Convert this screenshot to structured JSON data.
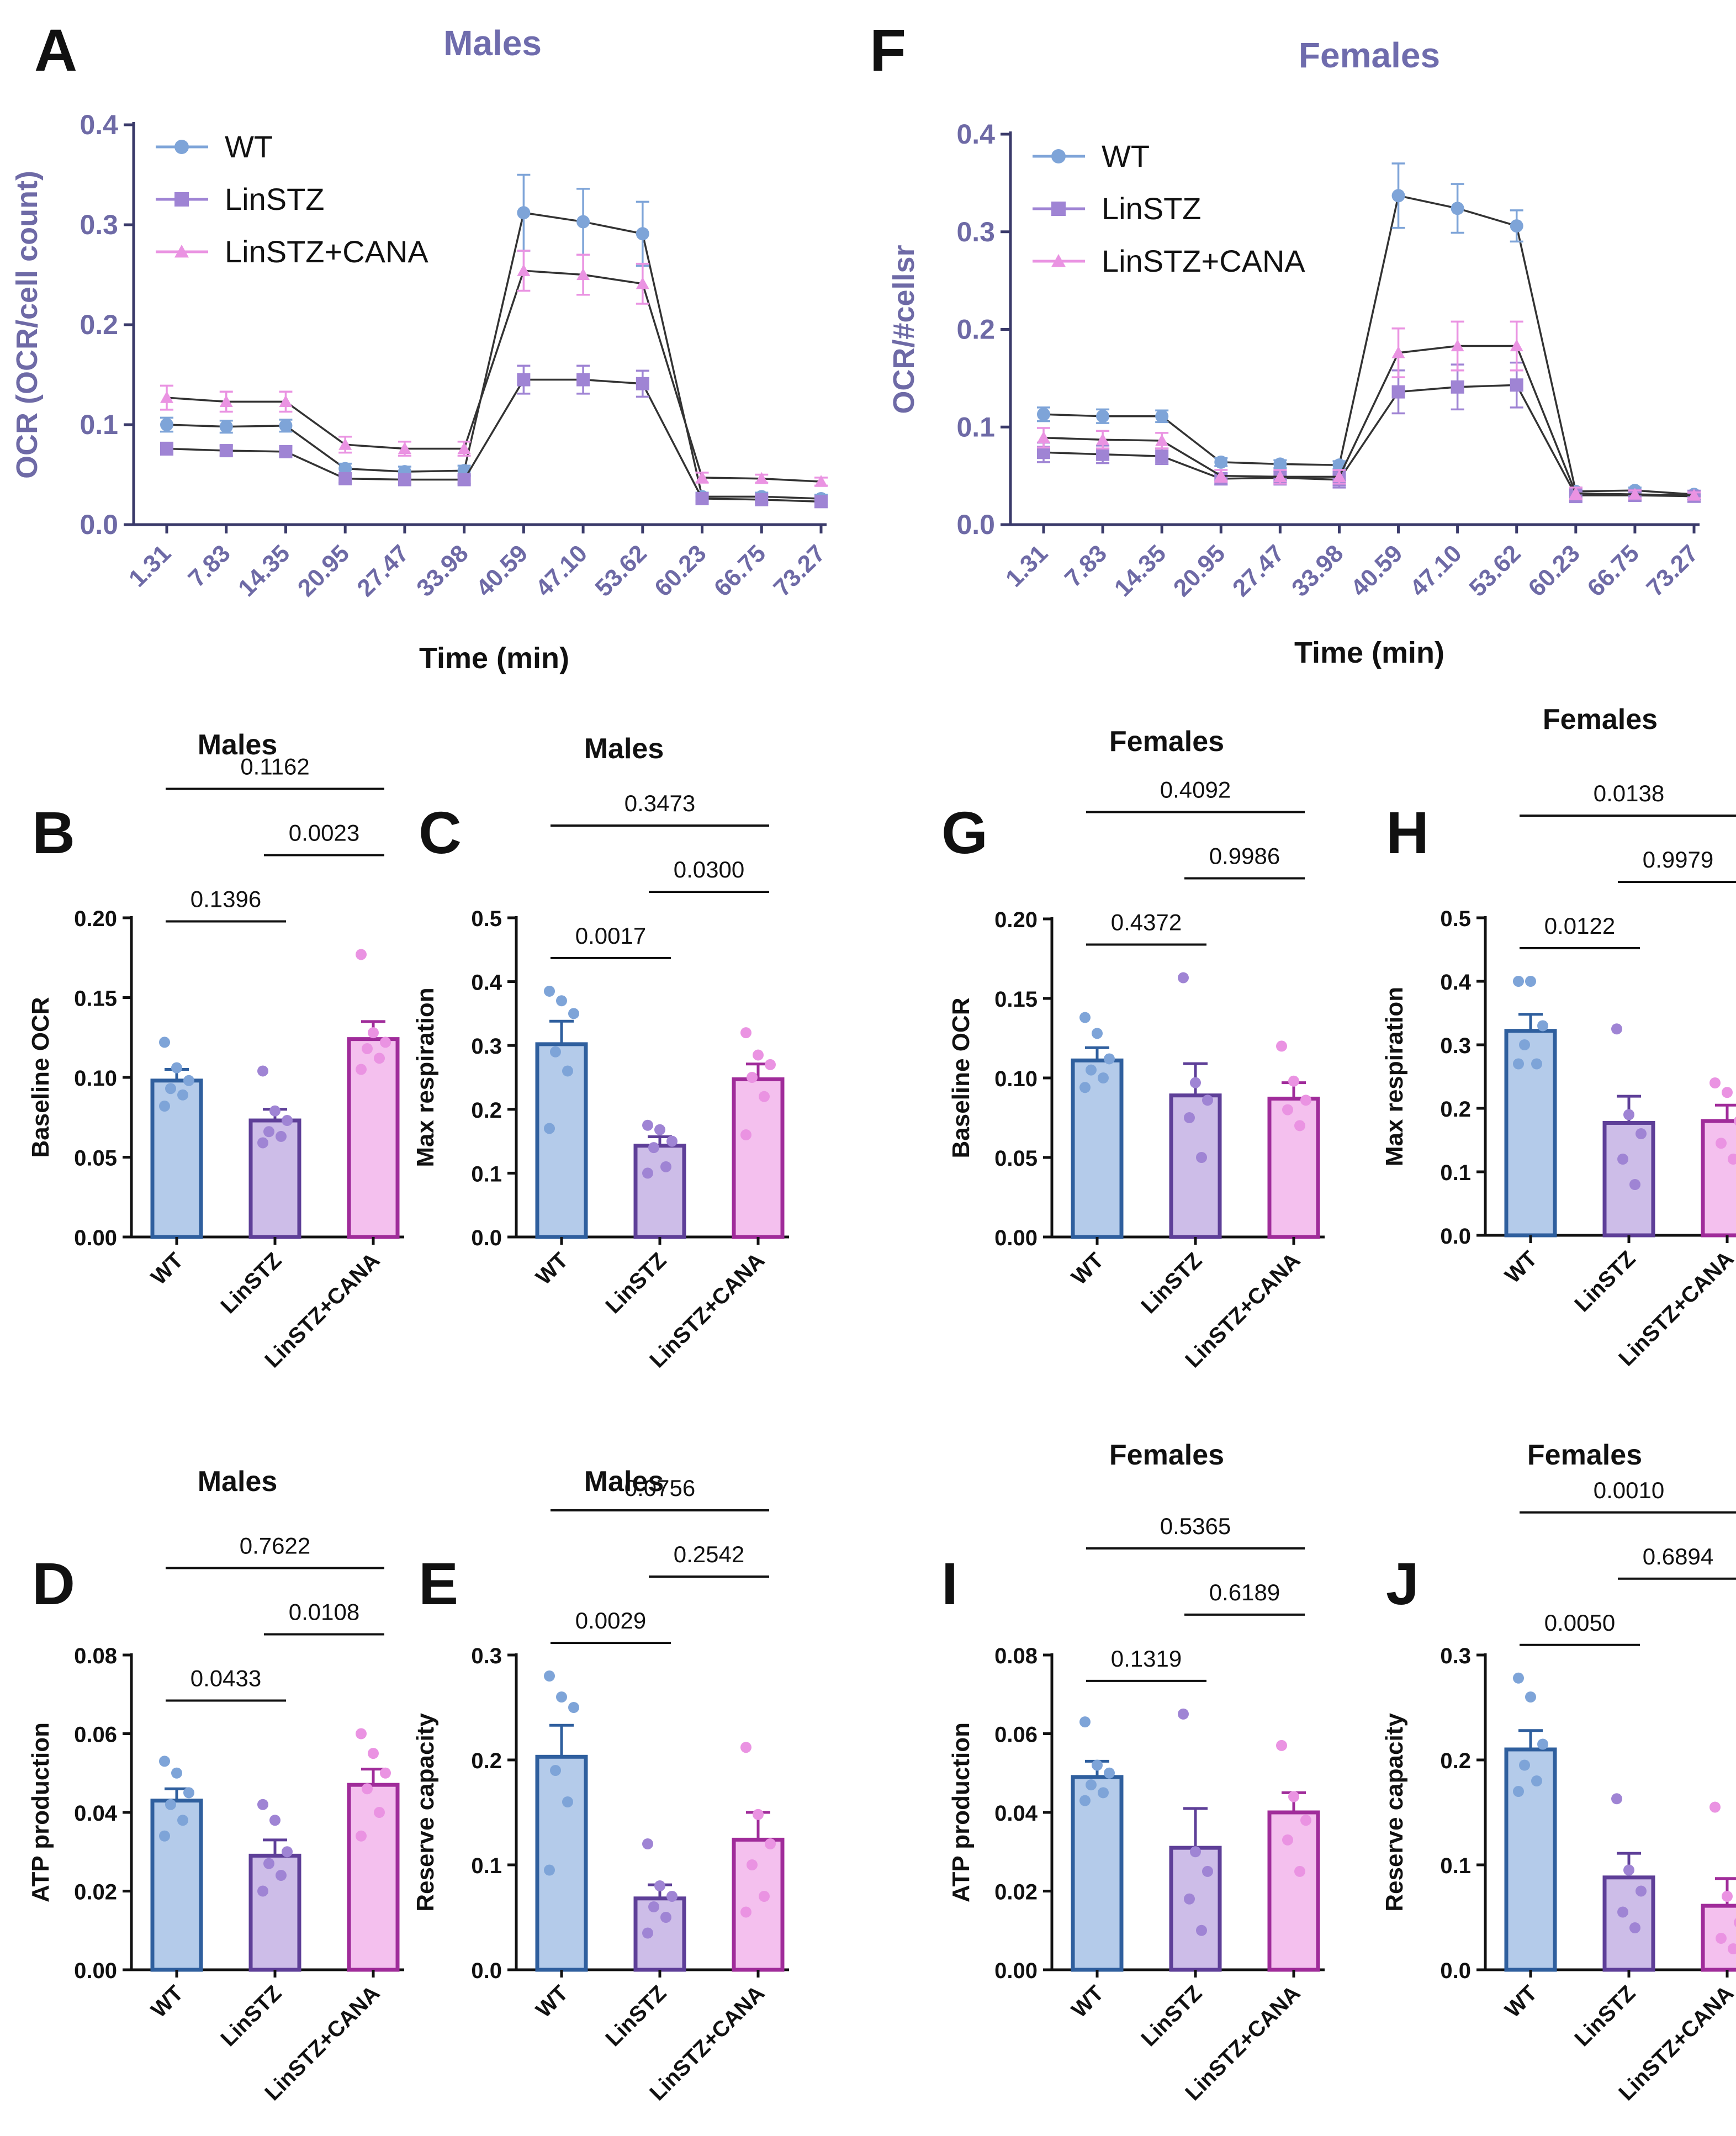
{
  "colors": {
    "wt": "#7ea4d8",
    "wt_dark": "#2f5f9e",
    "wt_fill": "#b4cbea",
    "lin": "#9f84d4",
    "lin_dark": "#5e3f98",
    "lin_fill": "#cdbde8",
    "cana": "#ea93e2",
    "cana_dark": "#a02c9a",
    "cana_fill": "#f4c0ee",
    "axis_line": "#3a3a6a",
    "axis_text": "#6e6aa6",
    "title_text": "#6f6cad",
    "black": "#111111",
    "trace_line": "#333333"
  },
  "chart_data": [
    {
      "id": "A",
      "type": "line",
      "panel_letter": "A",
      "title": "Males",
      "ylabel": "OCR (OCR/cell count)",
      "xlabel": "Time (min)",
      "ylim": [
        0,
        0.4
      ],
      "yticks": [
        "0.0",
        "0.1",
        "0.2",
        "0.3",
        "0.4"
      ],
      "categories": [
        "1.31",
        "7.83",
        "14.35",
        "20.95",
        "27.47",
        "33.98",
        "40.59",
        "47.10",
        "53.62",
        "60.23",
        "66.75",
        "73.27"
      ],
      "legend_position": "top-left",
      "series": [
        {
          "name": "WT",
          "key": "wt",
          "values": [
            0.1,
            0.098,
            0.099,
            0.056,
            0.053,
            0.054,
            0.312,
            0.303,
            0.291,
            0.028,
            0.028,
            0.026
          ],
          "errors": [
            0.007,
            0.006,
            0.006,
            0.005,
            0.005,
            0.005,
            0.038,
            0.033,
            0.032,
            0.004,
            0.004,
            0.004
          ]
        },
        {
          "name": "LinSTZ",
          "key": "lin",
          "values": [
            0.076,
            0.074,
            0.073,
            0.046,
            0.045,
            0.045,
            0.145,
            0.145,
            0.141,
            0.026,
            0.025,
            0.023
          ],
          "errors": [
            0.006,
            0.005,
            0.005,
            0.004,
            0.004,
            0.004,
            0.014,
            0.014,
            0.013,
            0.003,
            0.003,
            0.003
          ]
        },
        {
          "name": "LinSTZ+CANA",
          "key": "cana",
          "values": [
            0.127,
            0.123,
            0.123,
            0.08,
            0.076,
            0.076,
            0.254,
            0.25,
            0.241,
            0.047,
            0.046,
            0.043
          ],
          "errors": [
            0.012,
            0.01,
            0.01,
            0.008,
            0.007,
            0.007,
            0.02,
            0.02,
            0.02,
            0.005,
            0.004,
            0.004
          ]
        }
      ]
    },
    {
      "id": "F",
      "type": "line",
      "panel_letter": "F",
      "title": "Females",
      "ylabel": "OCR/#cellsr",
      "xlabel": "Time (min)",
      "ylim": [
        0,
        0.4
      ],
      "yticks": [
        "0.0",
        "0.1",
        "0.2",
        "0.3",
        "0.4"
      ],
      "categories": [
        "1.31",
        "7.83",
        "14.35",
        "20.95",
        "27.47",
        "33.98",
        "40.59",
        "47.10",
        "53.62",
        "60.23",
        "66.75",
        "73.27"
      ],
      "legend_position": "top-left",
      "series": [
        {
          "name": "WT",
          "key": "wt",
          "values": [
            0.113,
            0.111,
            0.111,
            0.064,
            0.062,
            0.061,
            0.337,
            0.324,
            0.306,
            0.034,
            0.035,
            0.031
          ],
          "errors": [
            0.007,
            0.007,
            0.006,
            0.004,
            0.004,
            0.004,
            0.033,
            0.025,
            0.016,
            0.004,
            0.003,
            0.003
          ]
        },
        {
          "name": "LinSTZ",
          "key": "lin",
          "values": [
            0.074,
            0.072,
            0.07,
            0.047,
            0.048,
            0.046,
            0.136,
            0.141,
            0.143,
            0.03,
            0.03,
            0.029
          ],
          "errors": [
            0.01,
            0.009,
            0.008,
            0.006,
            0.007,
            0.008,
            0.022,
            0.023,
            0.023,
            0.007,
            0.005,
            0.004
          ]
        },
        {
          "name": "LinSTZ+CANA",
          "key": "cana",
          "values": [
            0.089,
            0.087,
            0.086,
            0.05,
            0.049,
            0.049,
            0.176,
            0.183,
            0.183,
            0.032,
            0.031,
            0.03
          ],
          "errors": [
            0.01,
            0.009,
            0.008,
            0.006,
            0.007,
            0.007,
            0.025,
            0.025,
            0.025,
            0.006,
            0.004,
            0.003
          ]
        }
      ]
    },
    {
      "id": "B",
      "type": "bar",
      "panel_letter": "B",
      "title": "Males",
      "ylabel": "Baseline OCR",
      "categories": [
        "WT",
        "LinSTZ",
        "LinSTZ+CANA"
      ],
      "ylim": [
        0,
        0.2
      ],
      "yticks": [
        "0.00",
        "0.05",
        "0.10",
        "0.15",
        "0.20"
      ],
      "values": [
        0.098,
        0.073,
        0.124
      ],
      "errors": [
        0.007,
        0.007,
        0.011
      ],
      "points": [
        [
          0.122,
          0.106,
          0.098,
          0.093,
          0.089,
          0.082
        ],
        [
          0.104,
          0.079,
          0.073,
          0.066,
          0.063,
          0.059
        ],
        [
          0.177,
          0.128,
          0.122,
          0.118,
          0.112,
          0.105
        ]
      ],
      "pvalues": [
        {
          "from": 0,
          "to": 1,
          "label": "0.1396"
        },
        {
          "from": 1,
          "to": 2,
          "label": "0.0023"
        },
        {
          "from": 0,
          "to": 2,
          "label": "0.1162"
        }
      ]
    },
    {
      "id": "C",
      "type": "bar",
      "panel_letter": "C",
      "title": "Males",
      "ylabel": "Max respiration",
      "categories": [
        "WT",
        "LinSTZ",
        "LinSTZ+CANA"
      ],
      "ylim": [
        0,
        0.5
      ],
      "yticks": [
        "0.0",
        "0.1",
        "0.2",
        "0.3",
        "0.4",
        "0.5"
      ],
      "values": [
        0.302,
        0.143,
        0.247
      ],
      "errors": [
        0.036,
        0.014,
        0.024
      ],
      "points": [
        [
          0.385,
          0.37,
          0.35,
          0.29,
          0.26,
          0.17
        ],
        [
          0.175,
          0.168,
          0.15,
          0.14,
          0.11,
          0.1
        ],
        [
          0.32,
          0.285,
          0.27,
          0.25,
          0.22,
          0.16
        ]
      ],
      "pvalues": [
        {
          "from": 0,
          "to": 1,
          "label": "0.0017"
        },
        {
          "from": 1,
          "to": 2,
          "label": "0.0300"
        },
        {
          "from": 0,
          "to": 2,
          "label": "0.3473"
        }
      ]
    },
    {
      "id": "G",
      "type": "bar",
      "panel_letter": "G",
      "title": "Females",
      "ylabel": "Baseline OCR",
      "categories": [
        "WT",
        "LinSTZ",
        "LinSTZ+CANA"
      ],
      "ylim": [
        0,
        0.2
      ],
      "yticks": [
        "0.00",
        "0.05",
        "0.10",
        "0.15",
        "0.20"
      ],
      "values": [
        0.111,
        0.089,
        0.087
      ],
      "errors": [
        0.008,
        0.02,
        0.01
      ],
      "points": [
        [
          0.138,
          0.128,
          0.112,
          0.105,
          0.1,
          0.094
        ],
        [
          0.163,
          0.097,
          0.086,
          0.075,
          0.05
        ],
        [
          0.12,
          0.098,
          0.086,
          0.08,
          0.07
        ]
      ],
      "pvalues": [
        {
          "from": 0,
          "to": 1,
          "label": "0.4372"
        },
        {
          "from": 1,
          "to": 2,
          "label": "0.9986"
        },
        {
          "from": 0,
          "to": 2,
          "label": "0.4092"
        }
      ]
    },
    {
      "id": "H",
      "type": "bar",
      "panel_letter": "H",
      "title": "Females",
      "ylabel": "Max respiration",
      "categories": [
        "WT",
        "LinSTZ",
        "LinSTZ+CANA"
      ],
      "ylim": [
        0,
        0.5
      ],
      "yticks": [
        "0.0",
        "0.1",
        "0.2",
        "0.3",
        "0.4",
        "0.5"
      ],
      "values": [
        0.322,
        0.177,
        0.18
      ],
      "errors": [
        0.026,
        0.042,
        0.025
      ],
      "points": [
        [
          0.4,
          0.4,
          0.33,
          0.3,
          0.27,
          0.27
        ],
        [
          0.325,
          0.19,
          0.16,
          0.12,
          0.08
        ],
        [
          0.24,
          0.225,
          0.18,
          0.145,
          0.12
        ]
      ],
      "pvalues": [
        {
          "from": 0,
          "to": 1,
          "label": "0.0122"
        },
        {
          "from": 1,
          "to": 2,
          "label": "0.9979"
        },
        {
          "from": 0,
          "to": 2,
          "label": "0.0138"
        }
      ]
    },
    {
      "id": "D",
      "type": "bar",
      "panel_letter": "D",
      "title": "Males",
      "ylabel": "ATP production",
      "categories": [
        "WT",
        "LinSTZ",
        "LinSTZ+CANA"
      ],
      "ylim": [
        0,
        0.08
      ],
      "yticks": [
        "0.00",
        "0.02",
        "0.04",
        "0.06",
        "0.08"
      ],
      "values": [
        0.043,
        0.029,
        0.047
      ],
      "errors": [
        0.003,
        0.004,
        0.004
      ],
      "points": [
        [
          0.053,
          0.05,
          0.045,
          0.042,
          0.038,
          0.034
        ],
        [
          0.042,
          0.038,
          0.03,
          0.027,
          0.024,
          0.02
        ],
        [
          0.06,
          0.055,
          0.05,
          0.046,
          0.04,
          0.034
        ]
      ],
      "pvalues": [
        {
          "from": 0,
          "to": 1,
          "label": "0.0433"
        },
        {
          "from": 1,
          "to": 2,
          "label": "0.0108"
        },
        {
          "from": 0,
          "to": 2,
          "label": "0.7622"
        }
      ]
    },
    {
      "id": "E",
      "type": "bar",
      "panel_letter": "E",
      "title": "Males",
      "ylabel": "Reserve capacity",
      "categories": [
        "WT",
        "LinSTZ",
        "LinSTZ+CANA"
      ],
      "ylim": [
        0,
        0.3
      ],
      "yticks": [
        "0.0",
        "0.1",
        "0.2",
        "0.3"
      ],
      "values": [
        0.203,
        0.068,
        0.124
      ],
      "errors": [
        0.03,
        0.013,
        0.026
      ],
      "points": [
        [
          0.28,
          0.26,
          0.25,
          0.19,
          0.16,
          0.095
        ],
        [
          0.12,
          0.08,
          0.07,
          0.06,
          0.05,
          0.035
        ],
        [
          0.212,
          0.148,
          0.12,
          0.1,
          0.07,
          0.055
        ]
      ],
      "pvalues": [
        {
          "from": 0,
          "to": 1,
          "label": "0.0029"
        },
        {
          "from": 1,
          "to": 2,
          "label": "0.2542"
        },
        {
          "from": 0,
          "to": 2,
          "label": "0.0756"
        }
      ]
    },
    {
      "id": "I",
      "type": "bar",
      "panel_letter": "I",
      "title": "Females",
      "ylabel": "ATP production",
      "categories": [
        "WT",
        "LinSTZ",
        "LinSTZ+CANA"
      ],
      "ylim": [
        0,
        0.08
      ],
      "yticks": [
        "0.00",
        "0.02",
        "0.04",
        "0.06",
        "0.08"
      ],
      "values": [
        0.049,
        0.031,
        0.04
      ],
      "errors": [
        0.004,
        0.01,
        0.005
      ],
      "points": [
        [
          0.063,
          0.052,
          0.05,
          0.047,
          0.045,
          0.043
        ],
        [
          0.065,
          0.03,
          0.025,
          0.018,
          0.01
        ],
        [
          0.057,
          0.044,
          0.038,
          0.033,
          0.025
        ]
      ],
      "pvalues": [
        {
          "from": 0,
          "to": 1,
          "label": "0.1319"
        },
        {
          "from": 1,
          "to": 2,
          "label": "0.6189"
        },
        {
          "from": 0,
          "to": 2,
          "label": "0.5365"
        }
      ]
    },
    {
      "id": "J",
      "type": "bar",
      "panel_letter": "J",
      "title": "Females",
      "ylabel": "Reserve capacity",
      "categories": [
        "WT",
        "LinSTZ",
        "LinSTZ+CANA"
      ],
      "ylim": [
        0,
        0.3
      ],
      "yticks": [
        "0.0",
        "0.1",
        "0.2",
        "0.3"
      ],
      "values": [
        0.21,
        0.088,
        0.061
      ],
      "errors": [
        0.018,
        0.023,
        0.026
      ],
      "points": [
        [
          0.278,
          0.26,
          0.215,
          0.195,
          0.18,
          0.17
        ],
        [
          0.163,
          0.095,
          0.075,
          0.055,
          0.04
        ],
        [
          0.155,
          0.07,
          0.045,
          0.03,
          0.02
        ]
      ],
      "pvalues": [
        {
          "from": 0,
          "to": 1,
          "label": "0.0050"
        },
        {
          "from": 1,
          "to": 2,
          "label": "0.6894"
        },
        {
          "from": 0,
          "to": 2,
          "label": "0.0010"
        }
      ]
    }
  ]
}
